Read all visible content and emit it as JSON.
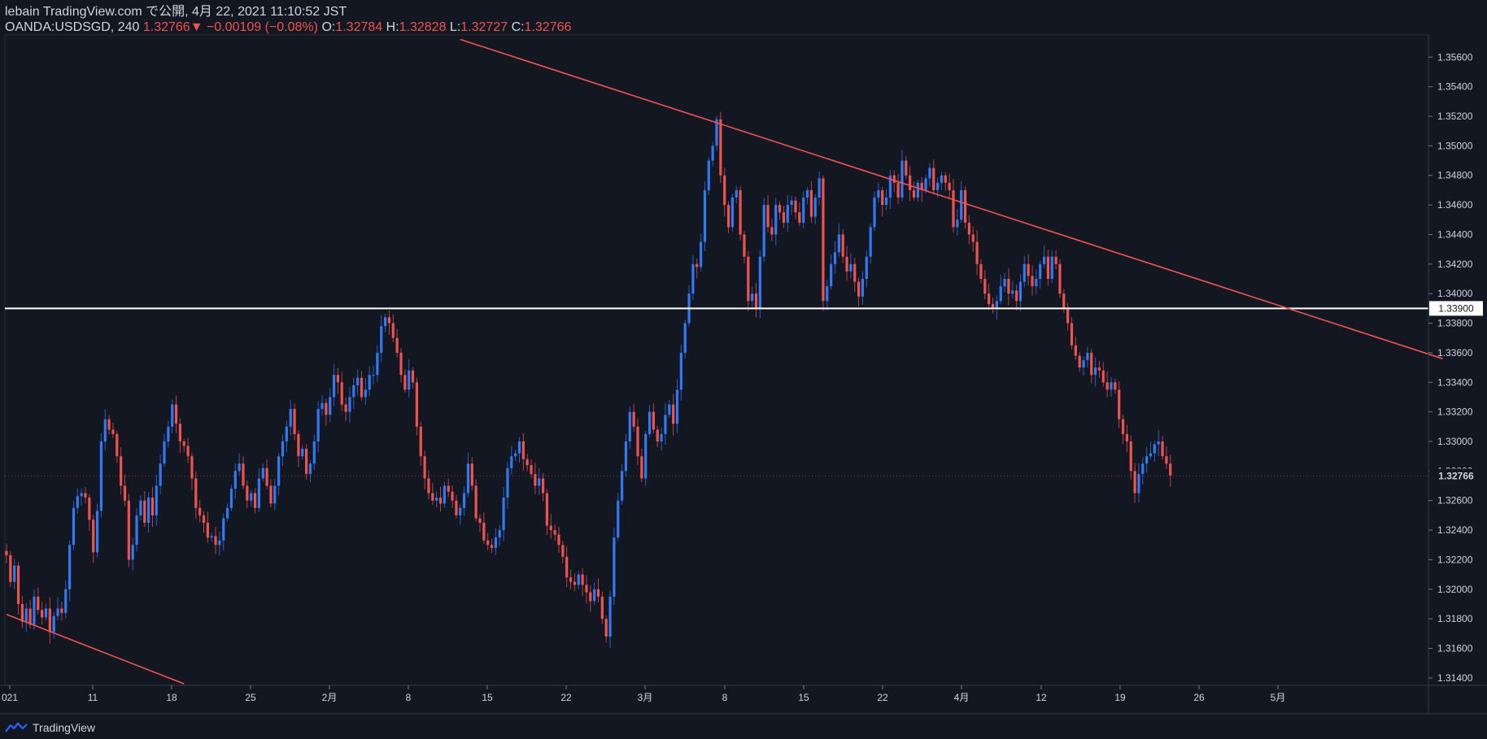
{
  "header": {
    "line1": "lebain TradingView.com で公開, 4月 22, 2021 11:10:52 JST",
    "symbol": "OANDA:USDSGD, 240",
    "last": "1.32766",
    "arrow": "▼",
    "change": "−0.00109 (−0.08%)",
    "o_label": "O:",
    "o_value": "1.32784",
    "h_label": "H:",
    "h_value": "1.32828",
    "l_label": "L:",
    "l_value": "1.32727",
    "c_label": "C:",
    "c_value": "1.32766"
  },
  "colors": {
    "background": "#131722",
    "up": "#2962ff",
    "up_light": "#3179f5",
    "down": "#ef5350",
    "trendline": "#f05350",
    "support": "#ffffff",
    "axis_text": "#d1d4dc",
    "grid": "#1e2230"
  },
  "footer": {
    "brand": "TradingView",
    "logo_icon": "tradingview-logo-icon"
  },
  "chart_data": {
    "type": "candlestick",
    "title": "OANDA:USDSGD, 240",
    "y_ticks": [
      "1.35600",
      "1.35400",
      "1.35200",
      "1.35000",
      "1.34800",
      "1.34600",
      "1.34400",
      "1.34200",
      "1.34000",
      "1.33800",
      "1.33600",
      "1.33400",
      "1.33200",
      "1.33000",
      "1.32800",
      "1.32600",
      "1.32400",
      "1.32200",
      "1.32000",
      "1.31800",
      "1.31600",
      "1.31400"
    ],
    "ylim": [
      1.3135,
      1.3575
    ],
    "x_ticks": [
      "021",
      "11",
      "18",
      "25",
      "2月",
      "8",
      "15",
      "22",
      "3月",
      "8",
      "15",
      "22",
      "4月",
      "12",
      "19",
      "26",
      "5月"
    ],
    "horizontal_line": {
      "value": 1.339,
      "label": "1.33900"
    },
    "last_price": {
      "value": 1.32766,
      "label": "1.32766"
    },
    "trendlines": [
      {
        "name": "resistance",
        "from": {
          "bar": 115,
          "price": 1.3572
        },
        "to": {
          "bar": 364,
          "price": 1.3356
        }
      },
      {
        "name": "support-lower",
        "from": {
          "bar": 0,
          "price": 1.3183
        },
        "to": {
          "bar": 45,
          "price": 1.3136
        }
      }
    ],
    "closes": [
      1.3223,
      1.3205,
      1.3216,
      1.319,
      1.3178,
      1.3187,
      1.3176,
      1.3195,
      1.3186,
      1.3181,
      1.3187,
      1.3171,
      1.3182,
      1.3187,
      1.3184,
      1.32,
      1.323,
      1.3255,
      1.3263,
      1.3265,
      1.3262,
      1.3247,
      1.3225,
      1.3253,
      1.33,
      1.3315,
      1.3308,
      1.3305,
      1.329,
      1.327,
      1.326,
      1.322,
      1.323,
      1.325,
      1.326,
      1.3245,
      1.3262,
      1.325,
      1.327,
      1.3285,
      1.33,
      1.331,
      1.3325,
      1.3312,
      1.33,
      1.3297,
      1.329,
      1.3275,
      1.3255,
      1.325,
      1.3245,
      1.3235,
      1.3236,
      1.323,
      1.3233,
      1.3248,
      1.3255,
      1.3268,
      1.328,
      1.3285,
      1.327,
      1.326,
      1.3265,
      1.3255,
      1.3275,
      1.3282,
      1.327,
      1.3258,
      1.327,
      1.329,
      1.33,
      1.331,
      1.3322,
      1.3305,
      1.329,
      1.3295,
      1.3278,
      1.3285,
      1.33,
      1.3322,
      1.3326,
      1.3318,
      1.333,
      1.3345,
      1.334,
      1.3325,
      1.332,
      1.333,
      1.3338,
      1.3343,
      1.333,
      1.3335,
      1.3345,
      1.3345,
      1.336,
      1.3378,
      1.3384,
      1.338,
      1.337,
      1.336,
      1.3345,
      1.3335,
      1.3348,
      1.334,
      1.331,
      1.329,
      1.3275,
      1.3265,
      1.326,
      1.3262,
      1.3258,
      1.327,
      1.3266,
      1.326,
      1.325,
      1.3255,
      1.3265,
      1.3285,
      1.327,
      1.3248,
      1.3245,
      1.3233,
      1.323,
      1.3228,
      1.3235,
      1.324,
      1.3262,
      1.3282,
      1.329,
      1.3292,
      1.33,
      1.3288,
      1.3284,
      1.3278,
      1.327,
      1.3275,
      1.3265,
      1.3243,
      1.324,
      1.3237,
      1.323,
      1.3222,
      1.3208,
      1.3205,
      1.3203,
      1.321,
      1.3203,
      1.3198,
      1.3192,
      1.32,
      1.3195,
      1.318,
      1.3168,
      1.3195,
      1.3235,
      1.326,
      1.328,
      1.33,
      1.332,
      1.331,
      1.329,
      1.3275,
      1.3305,
      1.332,
      1.3308,
      1.33,
      1.3305,
      1.3318,
      1.3325,
      1.3312,
      1.3335,
      1.336,
      1.338,
      1.34,
      1.342,
      1.3418,
      1.3435,
      1.347,
      1.349,
      1.35,
      1.3518,
      1.348,
      1.346,
      1.3445,
      1.3465,
      1.347,
      1.344,
      1.3425,
      1.3395,
      1.34,
      1.339,
      1.3425,
      1.346,
      1.3445,
      1.344,
      1.346,
      1.3455,
      1.3448,
      1.346,
      1.3463,
      1.3455,
      1.3448,
      1.3465,
      1.347,
      1.3452,
      1.3465,
      1.3478,
      1.3395,
      1.3405,
      1.342,
      1.3428,
      1.344,
      1.3425,
      1.3415,
      1.342,
      1.3408,
      1.3398,
      1.341,
      1.3425,
      1.3445,
      1.3465,
      1.347,
      1.346,
      1.3465,
      1.348,
      1.3475,
      1.3465,
      1.349,
      1.348,
      1.347,
      1.3465,
      1.3475,
      1.347,
      1.3478,
      1.3485,
      1.347,
      1.3475,
      1.348,
      1.3475,
      1.347,
      1.3445,
      1.345,
      1.347,
      1.3448,
      1.344,
      1.3435,
      1.342,
      1.341,
      1.34,
      1.3393,
      1.339,
      1.3395,
      1.3405,
      1.341,
      1.34,
      1.3402,
      1.3395,
      1.3408,
      1.342,
      1.3412,
      1.3405,
      1.341,
      1.342,
      1.3425,
      1.341,
      1.3425,
      1.342,
      1.34,
      1.339,
      1.338,
      1.3365,
      1.3358,
      1.335,
      1.3355,
      1.336,
      1.3345,
      1.335,
      1.3348,
      1.334,
      1.3335,
      1.334,
      1.3335,
      1.3315,
      1.3305,
      1.33,
      1.328,
      1.3265,
      1.3278,
      1.3285,
      1.329,
      1.3292,
      1.3298,
      1.33,
      1.329,
      1.3285,
      1.3277
    ]
  }
}
